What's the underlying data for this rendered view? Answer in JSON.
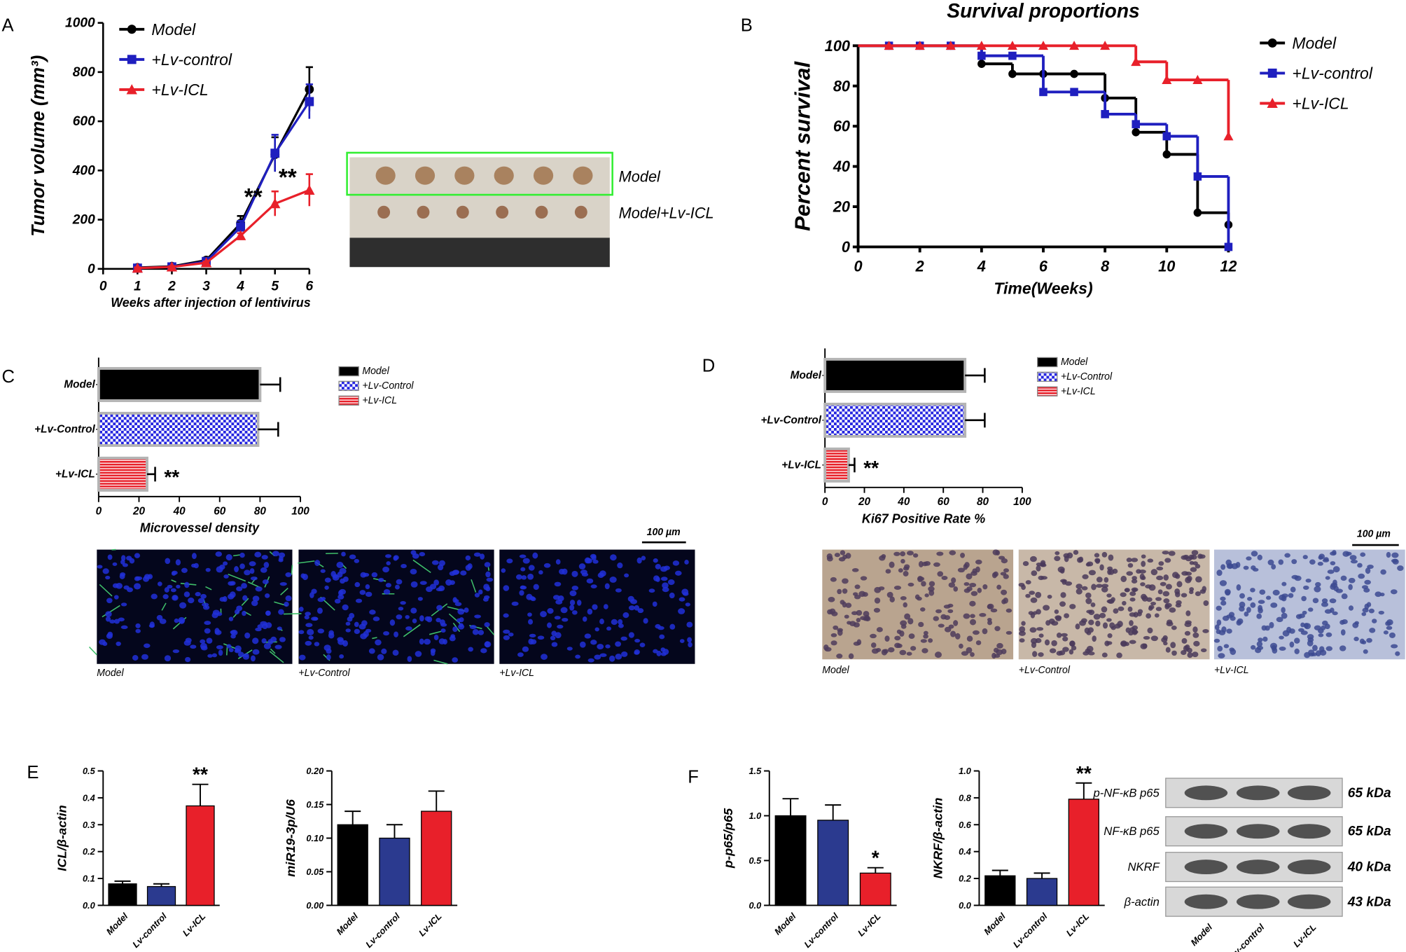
{
  "chart_data": [
    {
      "type": "line",
      "ylabel": "Tumor volume (mm³)",
      "xlabel": "Weeks after injection of lentivirus",
      "x": [
        1,
        2,
        3,
        4,
        5,
        6
      ],
      "xlim": [
        0,
        6
      ],
      "xticks": [
        0,
        1,
        2,
        3,
        4,
        5,
        6
      ],
      "ylim": [
        0,
        1000
      ],
      "yticks": [
        0,
        200,
        400,
        600,
        800,
        1000
      ],
      "series": [
        {
          "name": "Model",
          "color": "#000000",
          "marker": "circle",
          "values": [
            5,
            10,
            35,
            185,
            465,
            730
          ],
          "errors": [
            3,
            3,
            5,
            30,
            70,
            90
          ]
        },
        {
          "name": "+Lv-control",
          "color": "#1f1fbf",
          "marker": "square",
          "values": [
            3,
            8,
            30,
            170,
            470,
            680
          ],
          "errors": [
            3,
            3,
            5,
            25,
            75,
            70
          ]
        },
        {
          "name": "+Lv-ICL",
          "color": "#e8202a",
          "marker": "triangle",
          "values": [
            3,
            8,
            25,
            135,
            265,
            320
          ],
          "errors": [
            3,
            3,
            5,
            10,
            50,
            65
          ]
        }
      ],
      "annotations": [
        {
          "x": 4,
          "y": 290,
          "text": "**"
        },
        {
          "x": 5,
          "y": 370,
          "text": "**"
        }
      ]
    },
    {
      "type": "step",
      "title": "Survival proportions",
      "xlabel": "Time(Weeks)",
      "ylabel": "Percent survival",
      "x": [
        0,
        1,
        2,
        3,
        4,
        5,
        6,
        7,
        8,
        9,
        10,
        11,
        12
      ],
      "xlim": [
        0,
        12
      ],
      "xticks": [
        0,
        2,
        4,
        6,
        8,
        10,
        12
      ],
      "ylim": [
        0,
        100
      ],
      "yticks": [
        0,
        20,
        40,
        60,
        80,
        100
      ],
      "series": [
        {
          "name": "Model",
          "color": "#000000",
          "marker": "circle",
          "values": [
            100,
            100,
            100,
            100,
            91,
            86,
            86,
            86,
            74,
            57,
            46,
            17,
            11
          ]
        },
        {
          "name": "+Lv-control",
          "color": "#1f1fbf",
          "marker": "square",
          "values": [
            100,
            100,
            100,
            100,
            95,
            95,
            77,
            77,
            66,
            61,
            55,
            35,
            0
          ]
        },
        {
          "name": "+Lv-ICL",
          "color": "#e8202a",
          "marker": "triangle",
          "values": [
            100,
            100,
            100,
            100,
            100,
            100,
            100,
            100,
            100,
            92,
            83,
            83,
            55
          ]
        }
      ]
    },
    {
      "type": "bar",
      "orientation": "horizontal",
      "xlabel": "Microvessel density",
      "categories": [
        "Model",
        "+Lv-Control",
        "+Lv-ICL"
      ],
      "values": [
        80,
        79,
        24
      ],
      "errors": [
        10,
        10,
        4
      ],
      "colors": [
        "#000000",
        "#2626e0",
        "#e8202a"
      ],
      "patterns": [
        "solid",
        "checker",
        "stripes"
      ],
      "xlim": [
        0,
        100
      ],
      "xticks": [
        0,
        20,
        40,
        60,
        80,
        100
      ],
      "annotations": [
        {
          "category": "+Lv-ICL",
          "text": "**"
        }
      ]
    },
    {
      "type": "bar",
      "orientation": "horizontal",
      "xlabel": "Ki67 Positive Rate %",
      "categories": [
        "Model",
        "+Lv-Control",
        "+Lv-ICL"
      ],
      "values": [
        71,
        71,
        12
      ],
      "errors": [
        10,
        10,
        3
      ],
      "colors": [
        "#000000",
        "#2626e0",
        "#e8202a"
      ],
      "patterns": [
        "solid",
        "checker",
        "stripes"
      ],
      "xlim": [
        0,
        100
      ],
      "xticks": [
        0,
        20,
        40,
        60,
        80,
        100
      ],
      "annotations": [
        {
          "category": "+Lv-ICL",
          "text": "**"
        }
      ]
    },
    {
      "type": "bar",
      "ylabel": "ICL/β-actin",
      "categories": [
        "Model",
        "Lv-control",
        "Lv-ICL"
      ],
      "values": [
        0.08,
        0.07,
        0.37
      ],
      "errors": [
        0.01,
        0.01,
        0.08
      ],
      "colors": [
        "#000000",
        "#2b3a8f",
        "#e8202a"
      ],
      "ylim": [
        0,
        0.5
      ],
      "yticks": [
        {
          "value": 0,
          "label": "0.0"
        },
        0.1,
        0.2,
        0.3,
        0.4,
        0.5
      ],
      "annotations": [
        {
          "category": "Lv-ICL",
          "text": "**"
        }
      ]
    },
    {
      "type": "bar",
      "ylabel": "miR19-3p/U6",
      "categories": [
        "Model",
        "Lv-control",
        "Lv-ICL"
      ],
      "values": [
        0.12,
        0.1,
        0.14
      ],
      "errors": [
        0.02,
        0.02,
        0.03
      ],
      "colors": [
        "#000000",
        "#2b3a8f",
        "#e8202a"
      ],
      "ylim": [
        0,
        0.2
      ],
      "yticks": [
        {
          "value": 0,
          "label": "0.00"
        },
        {
          "value": 0.05,
          "label": "0.05"
        },
        {
          "value": 0.1,
          "label": "0.10"
        },
        {
          "value": 0.15,
          "label": "0.15"
        },
        {
          "value": 0.2,
          "label": "0.20"
        }
      ]
    },
    {
      "type": "bar",
      "ylabel": "p-p65/p65",
      "categories": [
        "Model",
        "Lv-control",
        "Lv-ICL"
      ],
      "values": [
        1.0,
        0.95,
        0.36
      ],
      "errors": [
        0.19,
        0.17,
        0.06
      ],
      "colors": [
        "#000000",
        "#2b3a8f",
        "#e8202a"
      ],
      "ylim": [
        0,
        1.5
      ],
      "yticks": [
        {
          "value": 0,
          "label": "0.0"
        },
        0.5,
        {
          "value": 1,
          "label": "1.0"
        },
        1.5
      ],
      "annotations": [
        {
          "category": "Lv-ICL",
          "text": "*"
        }
      ]
    },
    {
      "type": "bar",
      "ylabel": "NKRF/β-actin",
      "categories": [
        "Model",
        "Lv-control",
        "Lv-ICL"
      ],
      "values": [
        0.22,
        0.2,
        0.79
      ],
      "errors": [
        0.04,
        0.04,
        0.12
      ],
      "colors": [
        "#000000",
        "#2b3a8f",
        "#e8202a"
      ],
      "ylim": [
        0,
        1
      ],
      "yticks": [
        {
          "value": 0,
          "label": "0.0"
        },
        0.2,
        0.4,
        0.6,
        0.8,
        {
          "value": 1,
          "label": "1.0"
        }
      ],
      "annotations": [
        {
          "category": "Lv-ICL",
          "text": "**"
        }
      ]
    }
  ],
  "figure": {
    "panels": [
      "A",
      "B",
      "C",
      "D",
      "E",
      "F"
    ],
    "tumor_photo_labels": [
      "Model",
      "Model+Lv-ICL"
    ],
    "scale_bar": "100 µm",
    "mvd_captions": [
      "Model",
      "+Lv-Control",
      "+Lv-ICL"
    ],
    "ki67_captions": [
      "Model",
      "+Lv-Control",
      "+Lv-ICL"
    ],
    "blot": {
      "rows": [
        {
          "label": "p-NF-κB p65",
          "size": "65 kDa"
        },
        {
          "label": "NF-κB p65",
          "size": "65 kDa"
        },
        {
          "label": "NKRF",
          "size": "40 kDa"
        },
        {
          "label": "β-actin",
          "size": "43 kDa"
        }
      ],
      "lanes": [
        "Model",
        "Lv-control",
        "Lv-ICL"
      ]
    }
  }
}
